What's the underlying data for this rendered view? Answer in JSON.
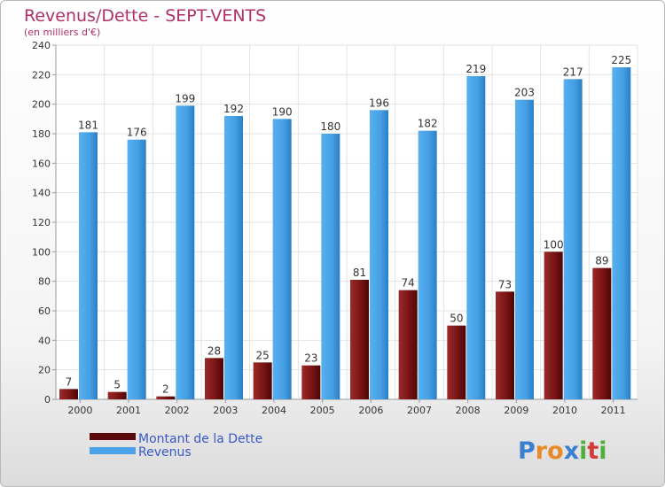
{
  "chart_data": {
    "type": "bar",
    "title": "Revenus/Dette - SEPT-VENTS",
    "subtitle": "(en milliers d'€)",
    "categories": [
      "2000",
      "2001",
      "2002",
      "2003",
      "2004",
      "2005",
      "2006",
      "2007",
      "2008",
      "2009",
      "2010",
      "2011"
    ],
    "series": [
      {
        "name": "Montant de la Dette",
        "values": [
          7,
          5,
          2,
          28,
          25,
          23,
          81,
          74,
          50,
          73,
          100,
          89
        ],
        "color": "#7a1010"
      },
      {
        "name": "Revenus",
        "values": [
          181,
          176,
          199,
          192,
          190,
          180,
          196,
          182,
          219,
          203,
          217,
          225
        ],
        "color": "#4aa3e8"
      }
    ],
    "ylim": [
      0,
      240
    ],
    "yticks": [
      0,
      20,
      40,
      60,
      80,
      100,
      120,
      140,
      160,
      180,
      200,
      220,
      240
    ],
    "grid": true,
    "legend_position": "bottom-left"
  },
  "logo": {
    "letters": [
      "P",
      "r",
      "o",
      "x",
      "i",
      "t",
      "i"
    ],
    "colors": [
      "#3a7fd0",
      "#e8892a",
      "#e8892a",
      "#3a7fd0",
      "#4fae3f",
      "#d43a3a",
      "#4fae3f"
    ]
  }
}
